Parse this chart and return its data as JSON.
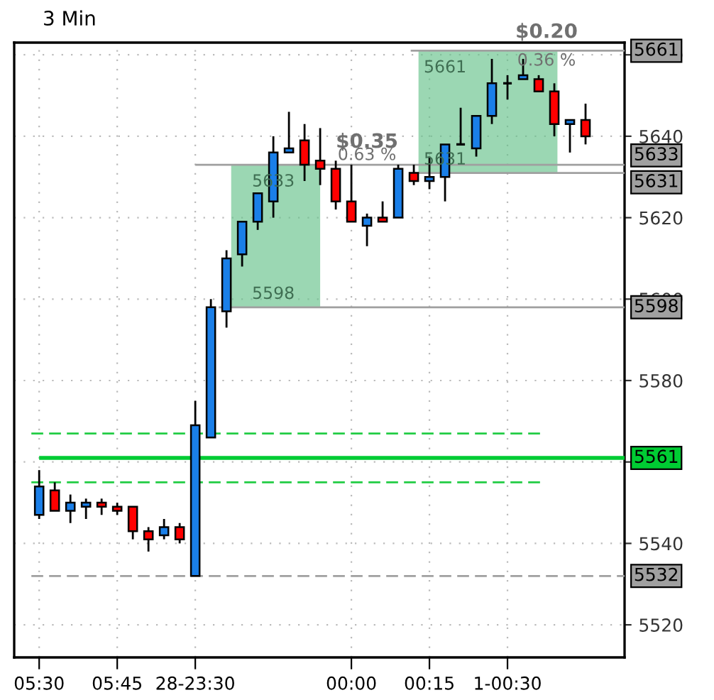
{
  "chart_data": {
    "type": "candlestick",
    "title": "3 Min",
    "categories": [
      "05:30",
      null,
      null,
      null,
      null,
      "05:45",
      null,
      null,
      null,
      null,
      "28-23:30",
      null,
      null,
      null,
      null,
      null,
      null,
      null,
      null,
      null,
      "00:00",
      null,
      null,
      null,
      null,
      "00:15",
      null,
      null,
      null,
      null,
      "1-00:30",
      null,
      null,
      null,
      null,
      null
    ],
    "ohlc": [
      [
        5547,
        5558,
        5546,
        5554
      ],
      [
        5553,
        5555,
        5548,
        5548
      ],
      [
        5548,
        5552,
        5545,
        5550
      ],
      [
        5549,
        5551,
        5546,
        5550
      ],
      [
        5550,
        5551,
        5547,
        5549
      ],
      [
        5549,
        5550,
        5547,
        5548
      ],
      [
        5549,
        5549,
        5541,
        5543
      ],
      [
        5543,
        5544,
        5538,
        5541
      ],
      [
        5542,
        5546,
        5541,
        5544
      ],
      [
        5544,
        5545,
        5540,
        5541
      ],
      [
        5532,
        5575,
        5532,
        5569
      ],
      [
        5566,
        5600,
        5566,
        5598
      ],
      [
        5597,
        5612,
        5593,
        5610
      ],
      [
        5611,
        5619,
        5608,
        5619
      ],
      [
        5619,
        5626,
        5617,
        5626
      ],
      [
        5624,
        5640,
        5620,
        5636
      ],
      [
        5636,
        5646,
        5636,
        5637
      ],
      [
        5639,
        5643,
        5629,
        5633
      ],
      [
        5634,
        5642,
        5628,
        5632
      ],
      [
        5632,
        5634,
        5622,
        5624
      ],
      [
        5624,
        5633,
        5619,
        5619
      ],
      [
        5618,
        5621,
        5613,
        5620
      ],
      [
        5620,
        5624,
        5619,
        5619
      ],
      [
        5620,
        5633,
        5620,
        5632
      ],
      [
        5631,
        5633,
        5628,
        5629
      ],
      [
        5629,
        5635,
        5627,
        5630
      ],
      [
        5630,
        5638,
        5624,
        5638
      ],
      [
        5638,
        5647,
        5638,
        5638
      ],
      [
        5637,
        5645,
        5635,
        5645
      ],
      [
        5645,
        5659,
        5643,
        5653
      ],
      [
        5653,
        5655,
        5649,
        5653
      ],
      [
        5654,
        5659,
        5654,
        5655
      ],
      [
        5654,
        5655,
        5651,
        5651
      ],
      [
        5651,
        5653,
        5640,
        5643
      ],
      [
        5643,
        5644,
        5636,
        5644
      ],
      [
        5644,
        5648,
        5638,
        5640
      ]
    ],
    "colors": [
      "#1a7fe8",
      "#ff0000",
      "#1a7fe8",
      "#1a7fe8",
      "#ff0000",
      "#ff0000",
      "#ff0000",
      "#ff0000",
      "#1a7fe8",
      "#ff0000",
      "#1a7fe8",
      "#1a7fe8",
      "#1a7fe8",
      "#1a7fe8",
      "#1a7fe8",
      "#1a7fe8",
      "#1a7fe8",
      "#ff0000",
      "#ff0000",
      "#ff0000",
      "#ff0000",
      "#1a7fe8",
      "#ff0000",
      "#1a7fe8",
      "#ff0000",
      "#1a7fe8",
      "#1a7fe8",
      "#000000",
      "#1a7fe8",
      "#1a7fe8",
      "#000000",
      "#1a7fe8",
      "#ff0000",
      "#ff0000",
      "#1a7fe8",
      "#ff0000"
    ],
    "ylim": [
      5512,
      5663
    ],
    "yticks": [
      5520,
      5540,
      {
        "value": 5560,
        "label": null
      },
      5580,
      5600,
      5620,
      5640,
      5660
    ],
    "grid": true,
    "ref_lines": [
      {
        "axis": "y",
        "value": 5661,
        "label": "5661",
        "color": "#a0a0a0",
        "line_style": "solid"
      },
      {
        "axis": "y",
        "value": 5633,
        "label": "5633",
        "color": "#a0a0a0",
        "line_style": "solid"
      },
      {
        "axis": "y",
        "value": 5631,
        "label": "5631",
        "color": "#a0a0a0",
        "line_style": "solid"
      },
      {
        "axis": "y",
        "value": 5598,
        "label": "5598",
        "color": "#a0a0a0",
        "line_style": "solid"
      },
      {
        "axis": "y",
        "value": 5567,
        "color": "#22cc44",
        "line_style": "dashed"
      },
      {
        "axis": "y",
        "value": 5561,
        "label": "5561",
        "color": "#00cc33",
        "line_style": "solid"
      },
      {
        "axis": "y",
        "value": 5555,
        "color": "#22cc44",
        "line_style": "dashed"
      },
      {
        "axis": "y",
        "value": 5532,
        "label": "5532",
        "color": "#a0a0a0",
        "line_style": "dashed"
      }
    ],
    "bands": [
      {
        "axis": "y",
        "from": 5598,
        "to": 5633,
        "color": "#66c28a"
      },
      {
        "axis": "y",
        "from": 5631,
        "to": 5661,
        "color": "#66c28a"
      }
    ],
    "annotations": [
      {
        "text": "5633",
        "y": 5633
      },
      {
        "text": "5598",
        "y": 5598
      },
      {
        "text": "5661",
        "y": 5661
      },
      {
        "text": "5631",
        "y": 5631
      },
      "$0.35",
      "0.63 %",
      "$0.20",
      "0.36 %"
    ]
  }
}
